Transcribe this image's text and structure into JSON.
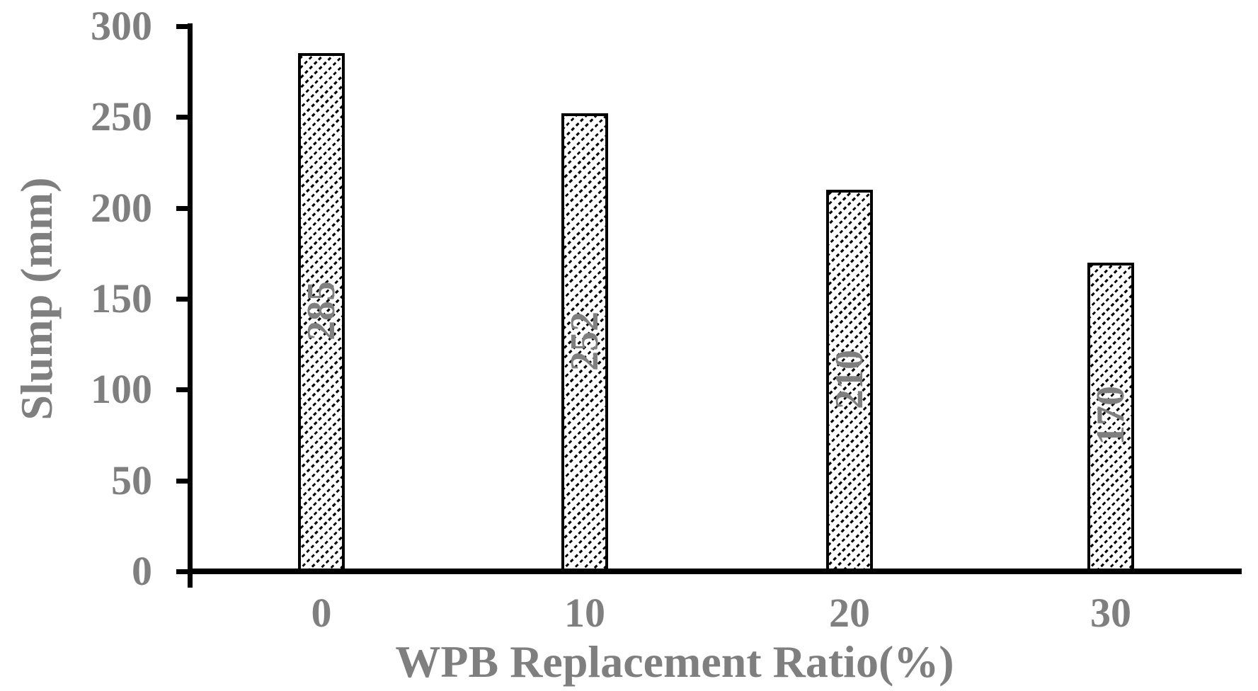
{
  "chart_data": {
    "type": "bar",
    "title": "",
    "categories": [
      "0",
      "10",
      "20",
      "30"
    ],
    "values": [
      285,
      252,
      210,
      170
    ],
    "bar_labels": [
      "285",
      "252",
      "210",
      "170"
    ],
    "xlabel": "WPB Replacement Ratio(%)",
    "ylabel": "Slump (mm)",
    "ytick_labels": [
      "0",
      "50",
      "100",
      "150",
      "200",
      "250",
      "300"
    ],
    "ytick_values": [
      0,
      50,
      100,
      150,
      200,
      250,
      300
    ],
    "ylim": [
      0,
      300
    ],
    "grid": false,
    "legend_position": "none",
    "bar_style": "white fill with black upward diagonal hatch, black border",
    "label_rotation": "90 degrees counterclockwise, centered inside bar",
    "colors": {
      "axis": "#000000",
      "text": "#7f7f7f",
      "bar_border": "#000000",
      "bar_background": "#ffffff"
    }
  }
}
